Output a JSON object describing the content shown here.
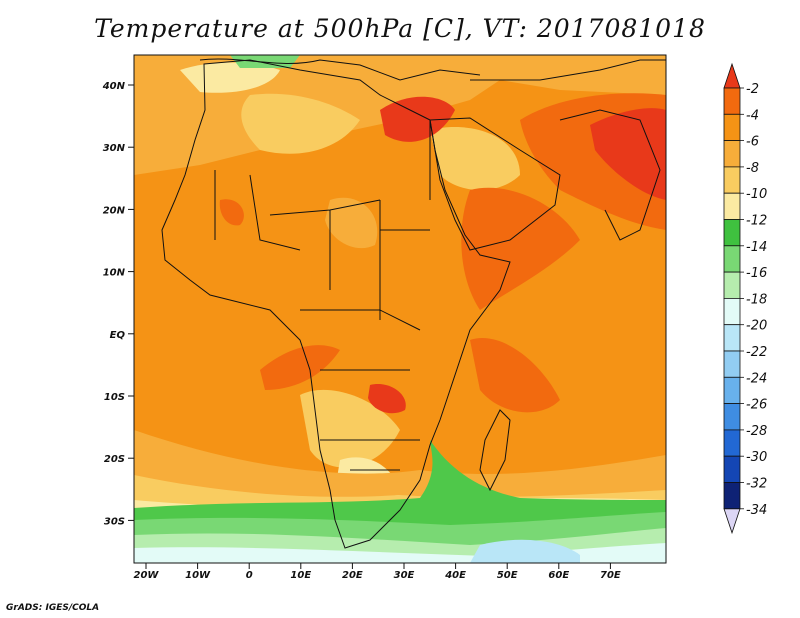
{
  "title": "Temperature at 500hPa [C], VT: 2017081018",
  "credit": "GrADS: IGES/COLA",
  "map": {
    "lat_ticks": [
      "40N",
      "30N",
      "20N",
      "10N",
      "EQ",
      "10S",
      "20S",
      "30S"
    ],
    "lon_ticks": [
      "20W",
      "10W",
      "0",
      "10E",
      "20E",
      "30E",
      "40E",
      "50E",
      "60E",
      "70E"
    ]
  },
  "colorbar": {
    "labels": [
      "-2",
      "-4",
      "-6",
      "-8",
      "-10",
      "-12",
      "-14",
      "-16",
      "-18",
      "-20",
      "-22",
      "-24",
      "-26",
      "-28",
      "-30",
      "-32",
      "-34"
    ],
    "colors": [
      "#e8391a",
      "#f26a0f",
      "#f59315",
      "#f7ad3a",
      "#f9cc60",
      "#fbeaa2",
      "#3fc13f",
      "#79d874",
      "#b6edae",
      "#e3fbf7",
      "#b9e6f7",
      "#92cdf2",
      "#68b1ec",
      "#3f8de2",
      "#2268d4",
      "#1446b4",
      "#0e2275",
      "#dcd6f5"
    ]
  },
  "colors": {
    "hot": "#e8391a",
    "warm": "#f59315",
    "cold_band": "#4fc84a"
  }
}
